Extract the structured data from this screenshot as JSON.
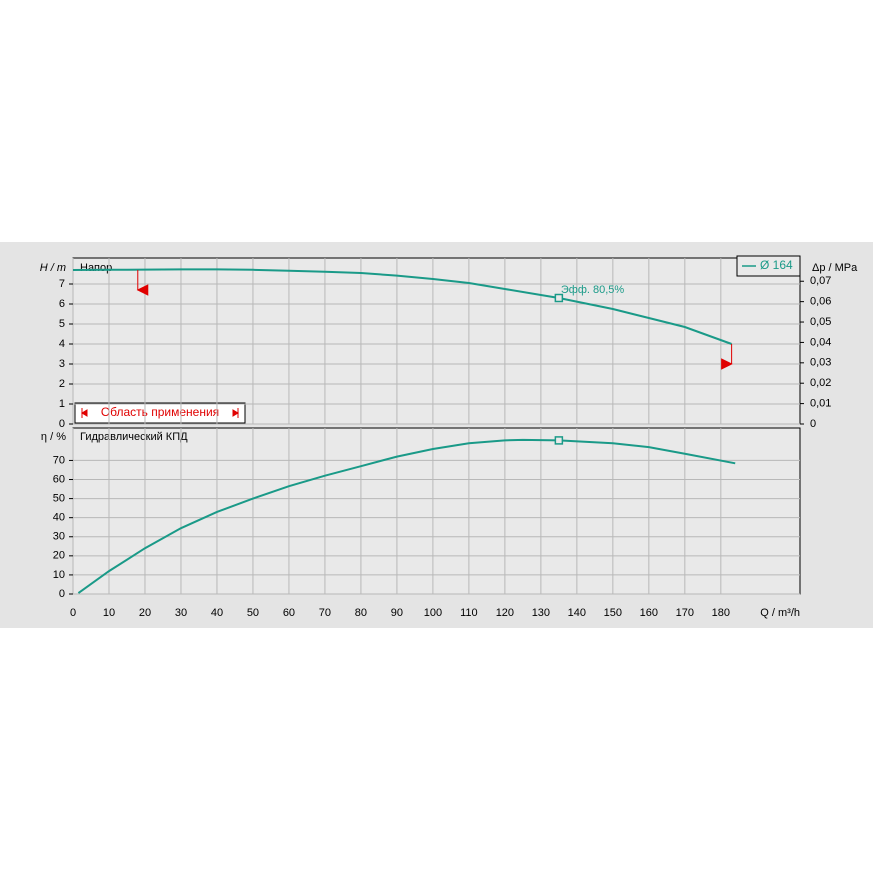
{
  "chart_data": [
    {
      "type": "line",
      "title": "Напор",
      "y_label": "H / m",
      "y2_label": "Δp / MPa",
      "x": [
        0,
        10,
        20,
        30,
        40,
        50,
        60,
        70,
        80,
        90,
        100,
        110,
        120,
        135,
        150,
        160,
        170,
        183
      ],
      "series": [
        {
          "name": "Ø 164",
          "color": "#1a9a88",
          "values": [
            7.7,
            7.71,
            7.72,
            7.73,
            7.73,
            7.71,
            7.66,
            7.61,
            7.55,
            7.42,
            7.25,
            7.05,
            6.75,
            6.3,
            5.75,
            5.3,
            4.85,
            4.0
          ]
        }
      ],
      "ylim": [
        0,
        8.3
      ],
      "yticks": [
        0,
        1,
        2,
        3,
        4,
        5,
        6,
        7
      ],
      "y2lim": [
        0,
        0.0814
      ],
      "y2ticks": [
        0,
        {
          "value": 0.01,
          "label": "0,01"
        },
        {
          "value": 0.02,
          "label": "0,02"
        },
        {
          "value": 0.03,
          "label": "0,03"
        },
        {
          "value": 0.04,
          "label": "0,04"
        },
        {
          "value": 0.05,
          "label": "0,05"
        },
        {
          "value": 0.06,
          "label": "0,06"
        },
        {
          "value": 0.07,
          "label": "0,07"
        }
      ],
      "operating_point": {
        "x": 135,
        "y": 6.3,
        "label": "Эфф.  80,5%"
      },
      "application_range": {
        "label": "Область применения",
        "x": [
          18,
          183
        ],
        "y": [
          7.7,
          4.0
        ]
      },
      "grid": true
    },
    {
      "type": "line",
      "title": "Гидравлический КПД",
      "y_label": "η / %",
      "x_label": "Q / m³/h",
      "x": [
        1.5,
        10,
        20,
        30,
        40,
        50,
        60,
        70,
        80,
        90,
        100,
        110,
        120,
        125,
        135,
        150,
        160,
        170,
        184
      ],
      "series": [
        {
          "name": "Ø 164",
          "color": "#1a9a88",
          "values": [
            0.5,
            12,
            24,
            34.5,
            43,
            50,
            56.5,
            62,
            67,
            72,
            76,
            79,
            80.5,
            80.8,
            80.5,
            79,
            77,
            73.5,
            68.5
          ]
        }
      ],
      "xlim": [
        0,
        202
      ],
      "xticks": [
        0,
        10,
        20,
        30,
        40,
        50,
        60,
        70,
        80,
        90,
        100,
        110,
        120,
        130,
        140,
        150,
        160,
        170,
        180
      ],
      "ylim": [
        0,
        87
      ],
      "yticks": [
        0,
        10,
        20,
        30,
        40,
        50,
        60,
        70
      ],
      "operating_point": {
        "x": 135,
        "y": 80.5
      },
      "grid": true
    }
  ]
}
